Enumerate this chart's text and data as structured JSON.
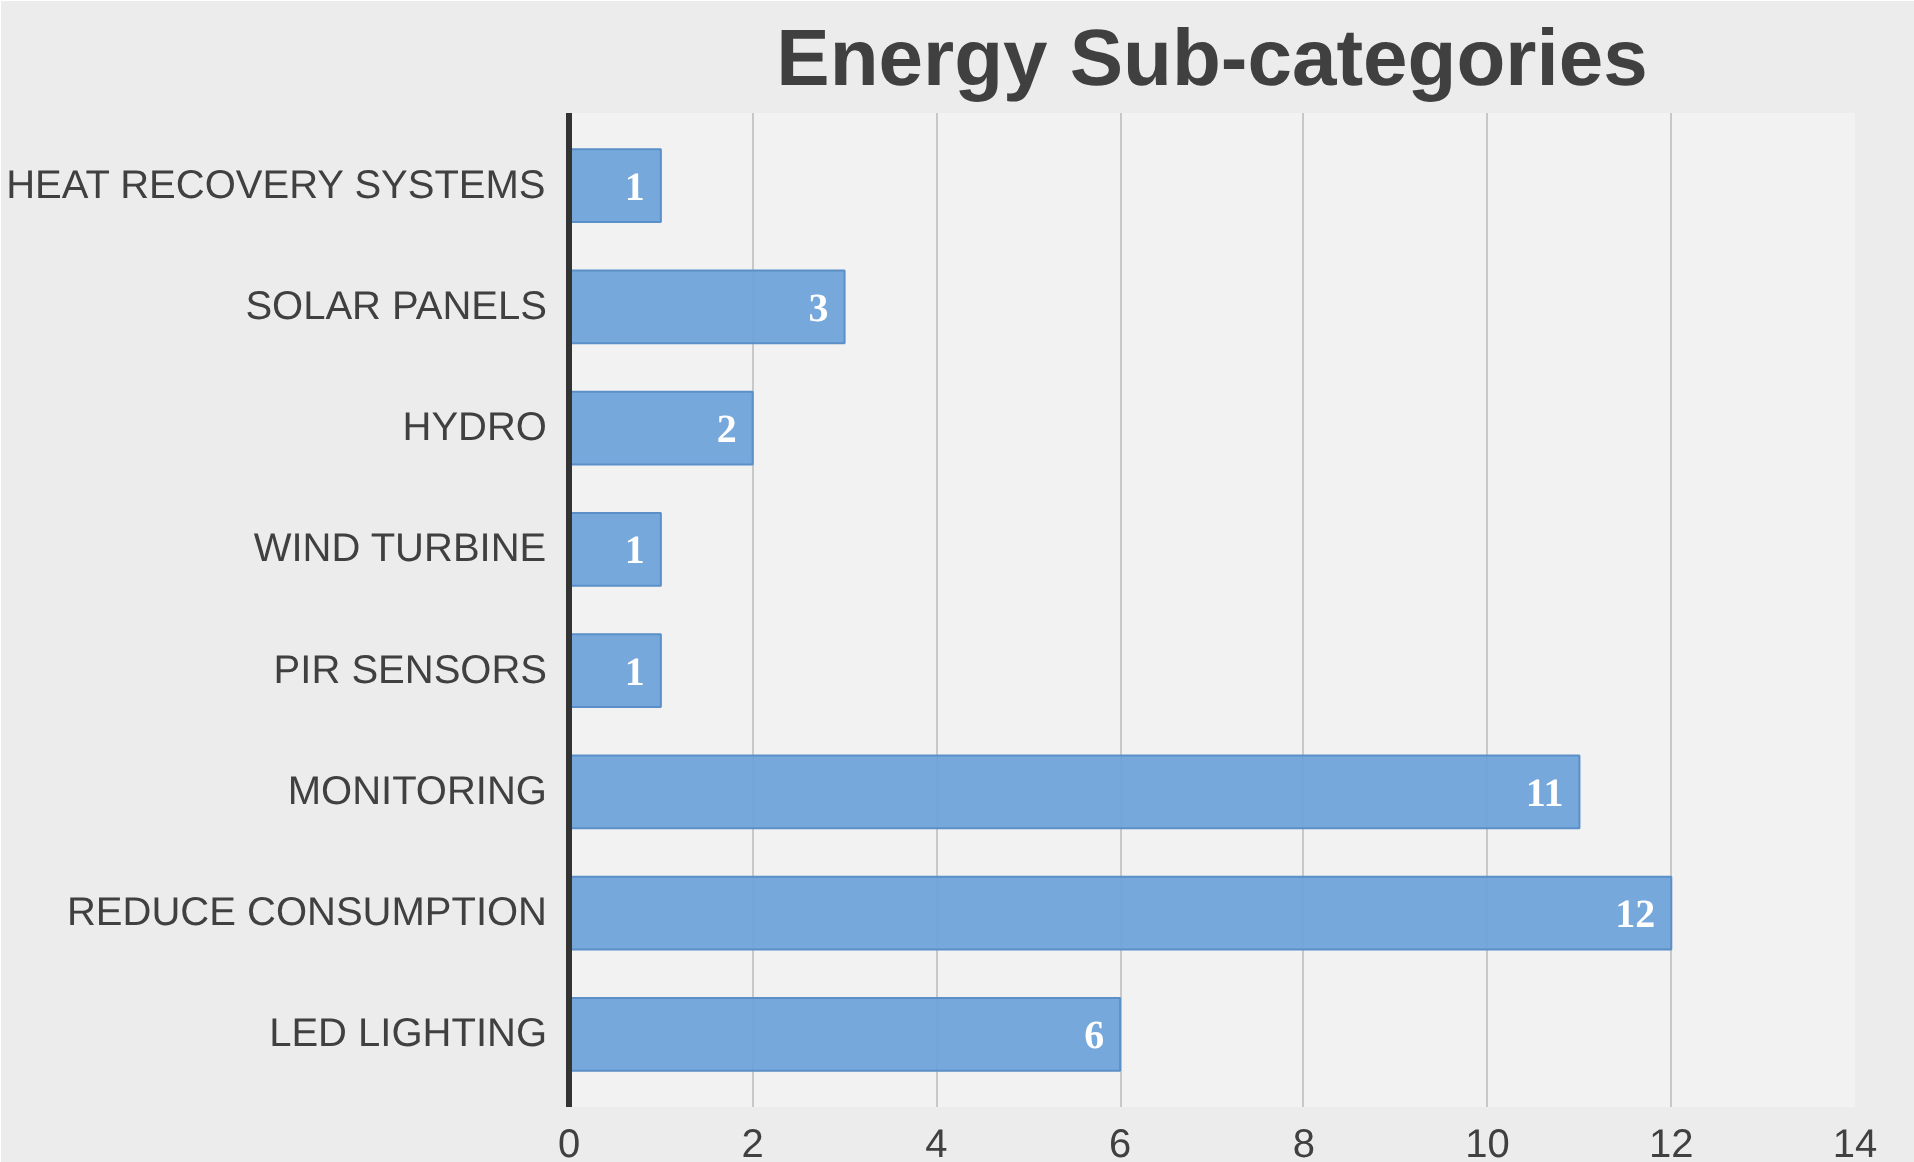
{
  "chart_data": {
    "type": "bar",
    "title": "Energy Sub-categories",
    "orientation": "horizontal",
    "categories": [
      "HEAT RECOVERY SYSTEMS",
      "SOLAR PANELS",
      "HYDRO",
      "WIND TURBINE",
      "PIR SENSORS",
      "MONITORING",
      "REDUCE CONSUMPTION",
      "LED LIGHTING"
    ],
    "values": [
      1,
      3,
      2,
      1,
      1,
      11,
      12,
      6
    ],
    "color": "#6fa3d9",
    "xlim": [
      0,
      14
    ],
    "xticks": [
      0,
      2,
      4,
      6,
      8,
      10,
      12,
      14
    ],
    "grid": "x",
    "data_labels": true
  }
}
